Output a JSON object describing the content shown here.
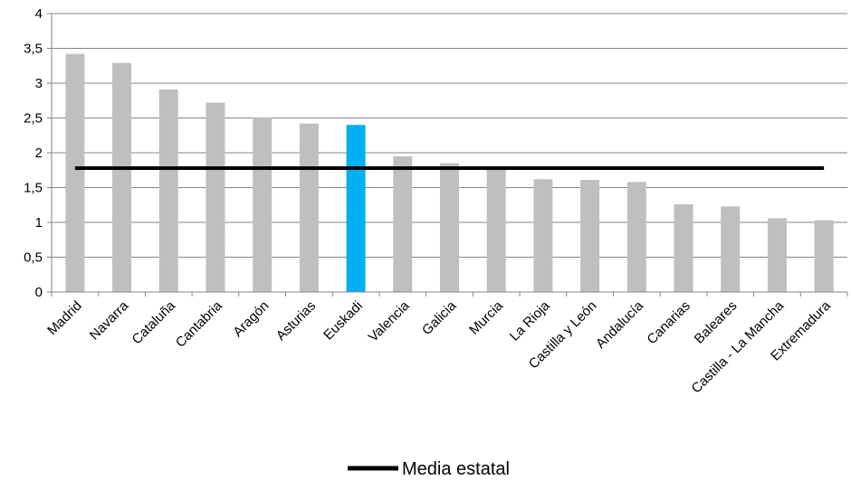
{
  "chart_data": {
    "type": "bar",
    "title": "",
    "xlabel": "",
    "ylabel": "",
    "ylim": [
      0,
      4
    ],
    "yticks": [
      "0",
      "0,5",
      "1",
      "1,5",
      "2",
      "2,5",
      "3",
      "3,5",
      "4"
    ],
    "grid": true,
    "legend_position": "bottom",
    "categories": [
      "Madrid",
      "Navarra",
      "Cataluña",
      "Cantabria",
      "Aragón",
      "Asturias",
      "Euskadi",
      "Valencia",
      "Galicia",
      "Murcia",
      "La Rioja",
      "Castilla y León",
      "Andalucía",
      "Canarias",
      "Baleares",
      "Castilla - La Mancha",
      "Extremadura"
    ],
    "values": [
      3.42,
      3.29,
      2.91,
      2.72,
      2.51,
      2.42,
      2.4,
      1.95,
      1.85,
      1.78,
      1.62,
      1.61,
      1.58,
      1.26,
      1.23,
      1.06,
      1.03
    ],
    "highlight_category": "Euskadi",
    "colors": {
      "bar": "#bfbfbf",
      "highlight": "#00b0f0",
      "line": "#000000",
      "grid": "#868686"
    },
    "series": [
      {
        "name": "Media estatal",
        "type": "line",
        "value": 1.78
      }
    ]
  }
}
